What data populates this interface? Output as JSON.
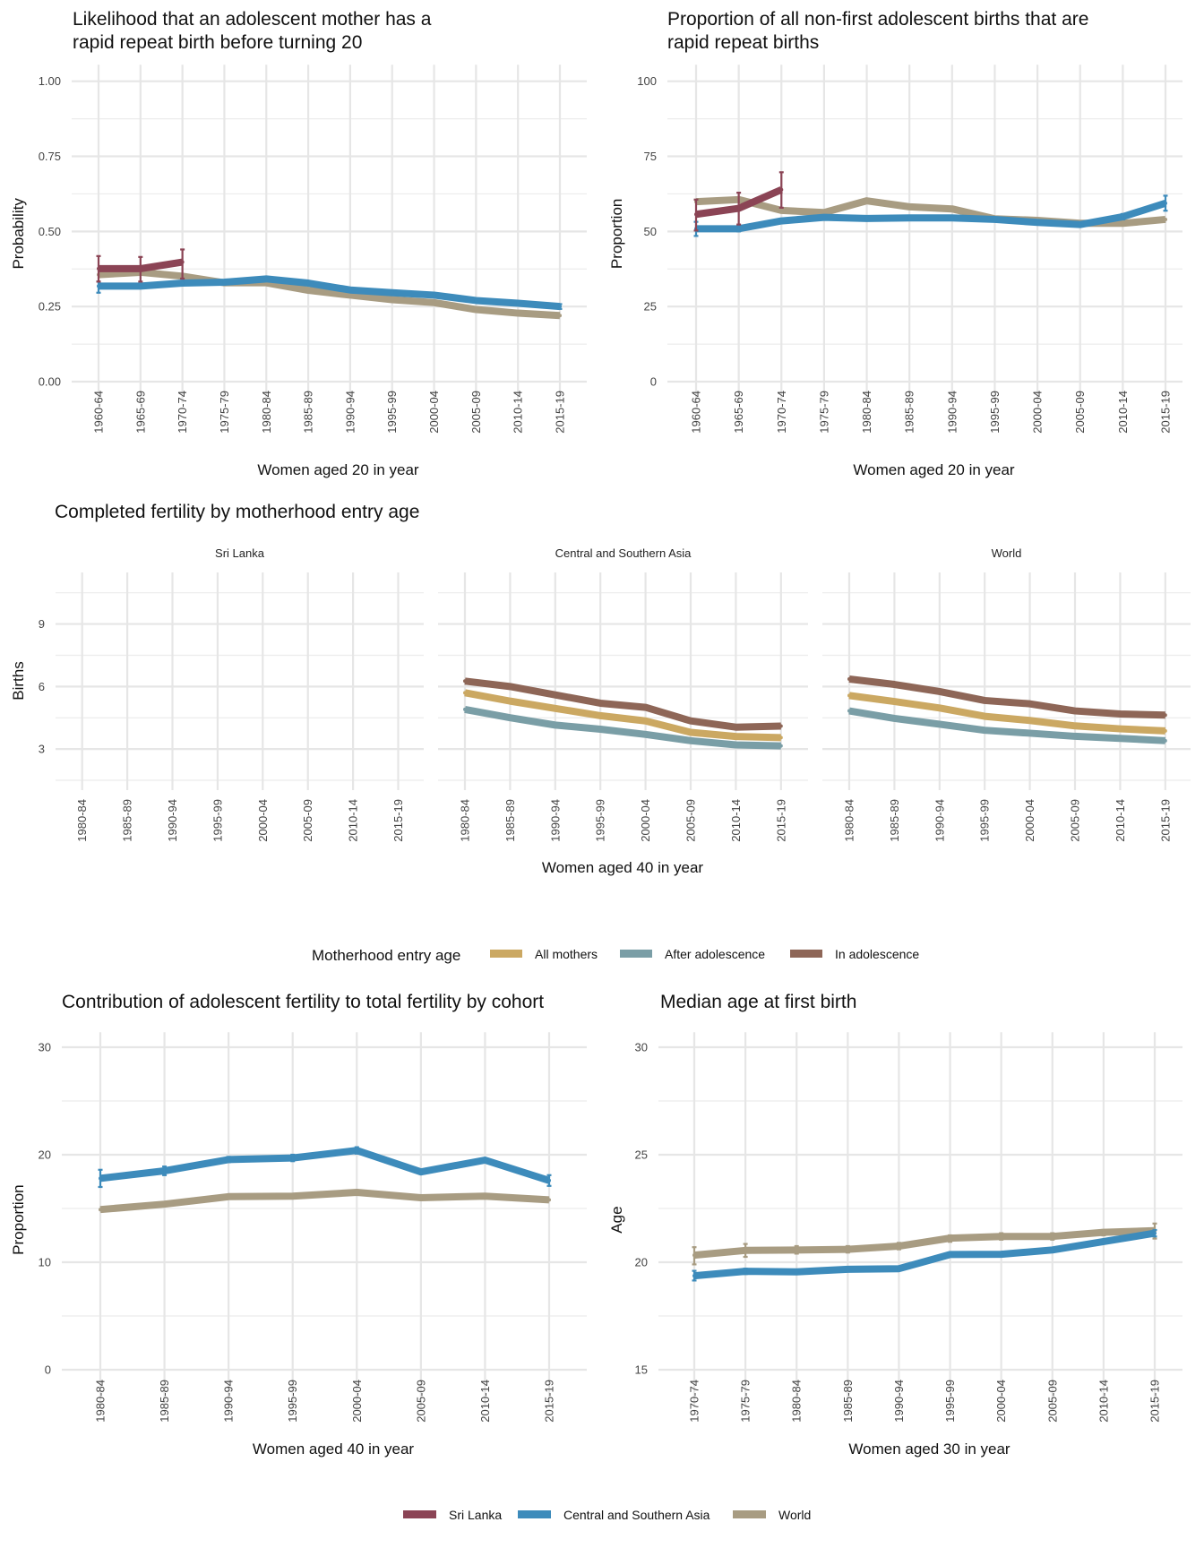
{
  "colors": {
    "sri_lanka": "#8B4455",
    "csa": "#3D8BBB",
    "world": "#A89C82",
    "all_mothers": "#CBA862",
    "after_adolescence": "#7A9EA6",
    "in_adolescence": "#8E6657"
  },
  "legend_bottom": {
    "entries": [
      {
        "label": "Sri Lanka",
        "color_key": "sri_lanka"
      },
      {
        "label": "Central and Southern Asia",
        "color_key": "csa"
      },
      {
        "label": "World",
        "color_key": "world"
      }
    ]
  },
  "legend_middle": {
    "title": "Motherhood entry age",
    "entries": [
      {
        "label": "All mothers",
        "color_key": "all_mothers"
      },
      {
        "label": "After adolescence",
        "color_key": "after_adolescence"
      },
      {
        "label": "In adolescence",
        "color_key": "in_adolescence"
      }
    ]
  },
  "chart_data": [
    {
      "id": "rapid-repeat-likelihood",
      "type": "line",
      "title": "Likelihood that an adolescent mother has a rapid repeat birth before turning 20",
      "title_lines": [
        "Likelihood that an adolescent mother has a",
        "rapid repeat birth before turning 20"
      ],
      "xlabel": "Women aged 20 in year",
      "ylabel": "Probability",
      "ylim": [
        0,
        1
      ],
      "yticks": [
        0,
        0.25,
        0.5,
        0.75,
        1.0
      ],
      "ytick_labels": [
        "0.00",
        "0.25",
        "0.50",
        "0.75",
        "1.00"
      ],
      "grid": true,
      "categories": [
        "1960-64",
        "1965-69",
        "1970-74",
        "1975-79",
        "1980-84",
        "1985-89",
        "1990-94",
        "1995-99",
        "2000-04",
        "2005-09",
        "2010-14",
        "2015-19"
      ],
      "series": [
        {
          "name": "World",
          "color_key": "world",
          "values": [
            0.356,
            0.364,
            0.351,
            0.329,
            0.329,
            0.304,
            0.288,
            0.273,
            0.263,
            0.24,
            0.228,
            0.22
          ]
        },
        {
          "name": "Central and Southern Asia",
          "color_key": "csa",
          "values": [
            0.318,
            0.318,
            0.328,
            0.331,
            0.342,
            0.328,
            0.305,
            0.296,
            0.288,
            0.27,
            0.261,
            0.25
          ],
          "error_low": [
            0.296,
            0.312,
            null,
            null,
            null,
            null,
            null,
            null,
            null,
            null,
            null,
            0.242
          ],
          "error_high": [
            0.333,
            0.325,
            null,
            null,
            null,
            null,
            null,
            null,
            null,
            null,
            null,
            0.258
          ]
        },
        {
          "name": "Sri Lanka",
          "color_key": "sri_lanka",
          "values": [
            0.376,
            0.376,
            0.398,
            null,
            null,
            null,
            null,
            null,
            null,
            null,
            null,
            null
          ],
          "error_low": [
            0.333,
            0.333,
            0.343,
            null,
            null,
            null,
            null,
            null,
            null,
            null,
            null,
            null
          ],
          "error_high": [
            0.418,
            0.415,
            0.44,
            null,
            null,
            null,
            null,
            null,
            null,
            null,
            null,
            null
          ]
        }
      ]
    },
    {
      "id": "rapid-repeat-proportion",
      "type": "line",
      "title": "Proportion of all non-first adolescent births that are rapid repeat births",
      "title_lines": [
        "Proportion of all non-first adolescent births that are",
        "rapid repeat births"
      ],
      "xlabel": "Women aged 20 in year",
      "ylabel": "Proportion",
      "ylim": [
        0,
        100
      ],
      "yticks": [
        0,
        25,
        50,
        75,
        100
      ],
      "ytick_labels": [
        "0",
        "25",
        "50",
        "75",
        "100"
      ],
      "grid": true,
      "categories": [
        "1960-64",
        "1965-69",
        "1970-74",
        "1975-79",
        "1980-84",
        "1985-89",
        "1990-94",
        "1995-99",
        "2000-04",
        "2005-09",
        "2010-14",
        "2015-19"
      ],
      "series": [
        {
          "name": "World",
          "color_key": "world",
          "values": [
            59.9,
            60.6,
            57.0,
            56.3,
            60.2,
            58.2,
            57.5,
            54.2,
            53.7,
            52.7,
            52.7,
            54.0
          ]
        },
        {
          "name": "Central and Southern Asia",
          "color_key": "csa",
          "values": [
            50.9,
            50.9,
            53.5,
            54.7,
            54.3,
            54.5,
            54.5,
            54.0,
            53.0,
            52.3,
            54.9,
            59.4
          ],
          "error_low": [
            48.5,
            50.0,
            null,
            null,
            null,
            null,
            null,
            null,
            null,
            null,
            54.0,
            56.9
          ],
          "error_high": [
            53.2,
            52.0,
            null,
            null,
            null,
            null,
            null,
            null,
            null,
            null,
            55.8,
            61.9
          ]
        },
        {
          "name": "Sri Lanka",
          "color_key": "sri_lanka",
          "values": [
            55.7,
            57.7,
            63.9,
            null,
            null,
            null,
            null,
            null,
            null,
            null,
            null,
            null
          ],
          "error_low": [
            50.3,
            52.3,
            57.9,
            null,
            null,
            null,
            null,
            null,
            null,
            null,
            null,
            null
          ],
          "error_high": [
            60.6,
            62.9,
            69.7,
            null,
            null,
            null,
            null,
            null,
            null,
            null,
            null,
            null
          ]
        }
      ]
    },
    {
      "id": "completed-fertility",
      "type": "line",
      "title": "Completed fertility by motherhood entry age",
      "xlabel": "Women aged 40 in year",
      "ylabel": "Births",
      "ylim": [
        1.3,
        11.8
      ],
      "yticks": [
        3,
        6,
        9
      ],
      "ytick_labels": [
        "3",
        "6",
        "9"
      ],
      "grid": true,
      "categories": [
        "1980-84",
        "1985-89",
        "1990-94",
        "1995-99",
        "2000-04",
        "2005-09",
        "2010-14",
        "2015-19"
      ],
      "facets": [
        {
          "name": "Sri Lanka",
          "series": []
        },
        {
          "name": "Central and Southern Asia",
          "series": [
            {
              "name": "All mothers",
              "color_key": "all_mothers",
              "values": [
                5.7,
                5.3,
                4.95,
                4.6,
                4.35,
                3.8,
                3.6,
                3.55
              ]
            },
            {
              "name": "After adolescence",
              "color_key": "after_adolescence",
              "values": [
                4.9,
                4.5,
                4.15,
                3.95,
                3.7,
                3.4,
                3.2,
                3.15
              ]
            },
            {
              "name": "In adolescence",
              "color_key": "in_adolescence",
              "values": [
                6.26,
                6.0,
                5.6,
                5.2,
                5.0,
                4.35,
                4.05,
                4.1
              ]
            }
          ]
        },
        {
          "name": "World",
          "series": [
            {
              "name": "All mothers",
              "color_key": "all_mothers",
              "values": [
                5.57,
                5.28,
                4.97,
                4.57,
                4.37,
                4.11,
                3.97,
                3.87
              ]
            },
            {
              "name": "After adolescence",
              "color_key": "after_adolescence",
              "values": [
                4.83,
                4.47,
                4.19,
                3.9,
                3.76,
                3.61,
                3.51,
                3.4
              ]
            },
            {
              "name": "In adolescence",
              "color_key": "in_adolescence",
              "values": [
                6.36,
                6.1,
                5.76,
                5.33,
                5.17,
                4.83,
                4.68,
                4.63
              ]
            }
          ]
        }
      ]
    },
    {
      "id": "adolescent-contribution",
      "type": "line",
      "title": "Contribution of adolescent fertility to total fertility by cohort",
      "xlabel": "Women aged 40 in year",
      "ylabel": "Proportion",
      "ylim": [
        0,
        30
      ],
      "yticks": [
        0,
        10,
        20,
        30
      ],
      "ytick_labels": [
        "0",
        "10",
        "20",
        "30"
      ],
      "grid": true,
      "categories": [
        "1980-84",
        "1985-89",
        "1990-94",
        "1995-99",
        "2000-04",
        "2005-09",
        "2010-14",
        "2015-19"
      ],
      "series": [
        {
          "name": "World",
          "color_key": "world",
          "values": [
            14.9,
            15.4,
            16.1,
            16.15,
            16.5,
            16.0,
            16.15,
            15.8
          ]
        },
        {
          "name": "Central and Southern Asia",
          "color_key": "csa",
          "values": [
            17.8,
            18.5,
            19.55,
            19.7,
            20.4,
            18.4,
            19.5,
            17.6
          ],
          "error_low": [
            17.0,
            18.1,
            19.3,
            19.4,
            20.1,
            null,
            null,
            17.1
          ],
          "error_high": [
            18.6,
            18.9,
            19.8,
            20.0,
            20.7,
            null,
            null,
            18.1
          ]
        }
      ]
    },
    {
      "id": "median-age-first-birth",
      "type": "line",
      "title": "Median age at first birth",
      "xlabel": "Women aged 30 in year",
      "ylabel": "Age",
      "ylim": [
        15,
        30
      ],
      "yticks": [
        15,
        20,
        25,
        30
      ],
      "ytick_labels": [
        "15",
        "20",
        "25",
        "30"
      ],
      "grid": true,
      "categories": [
        "1970-74",
        "1975-79",
        "1980-84",
        "1985-89",
        "1990-94",
        "1995-99",
        "2000-04",
        "2005-09",
        "2010-14",
        "2015-19"
      ],
      "series": [
        {
          "name": "World",
          "color_key": "world",
          "values": [
            20.33,
            20.55,
            20.57,
            20.6,
            20.75,
            21.12,
            21.2,
            21.2,
            21.39,
            21.47
          ],
          "error_low": [
            19.9,
            20.25,
            20.4,
            20.45,
            20.6,
            20.95,
            21.05,
            21.05,
            21.25,
            21.1
          ],
          "error_high": [
            20.7,
            20.85,
            20.75,
            20.75,
            20.9,
            21.25,
            21.35,
            21.35,
            21.5,
            21.8
          ]
        },
        {
          "name": "Central and Southern Asia",
          "color_key": "csa",
          "values": [
            19.37,
            19.58,
            19.55,
            19.67,
            19.7,
            20.36,
            20.37,
            20.57,
            20.96,
            21.35
          ],
          "error_low": [
            19.15,
            19.45,
            null,
            null,
            null,
            null,
            null,
            null,
            null,
            21.2
          ],
          "error_high": [
            19.6,
            19.7,
            null,
            null,
            null,
            null,
            null,
            null,
            null,
            21.5
          ]
        }
      ]
    }
  ]
}
